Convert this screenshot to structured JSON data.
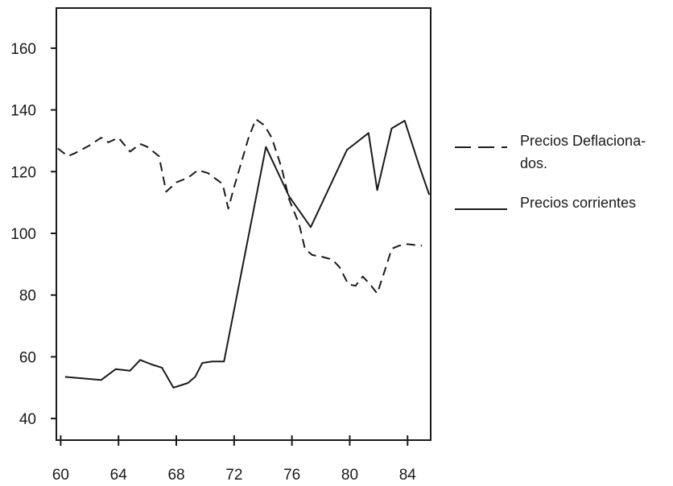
{
  "chart_data": {
    "type": "line",
    "title": "",
    "xlabel": "",
    "ylabel": "",
    "xlim": [
      59.7,
      85.6
    ],
    "ylim": [
      33,
      173
    ],
    "x_ticks": [
      60,
      64,
      68,
      72,
      76,
      80,
      84
    ],
    "x_tick_labels": [
      "60",
      "64",
      "68",
      "72",
      "76",
      "80",
      "84"
    ],
    "y_ticks": [
      40,
      60,
      80,
      100,
      120,
      140,
      160
    ],
    "y_tick_labels": [
      "40",
      "60",
      "80",
      "100",
      "120",
      "140",
      "160"
    ],
    "grid": false,
    "legend_position": "right",
    "legend": [
      {
        "lines": [
          "Precios Deflaciona-",
          "dos."
        ],
        "style": "dashed"
      },
      {
        "lines": [
          "Precios corrientes"
        ],
        "style": "solid"
      }
    ],
    "series": [
      {
        "style": "dashed",
        "color": "#1a1a1a",
        "points": [
          [
            59.8,
            127.5
          ],
          [
            60.5,
            125
          ],
          [
            61,
            126
          ],
          [
            62,
            128.5
          ],
          [
            62.8,
            131
          ],
          [
            63.3,
            129.5
          ],
          [
            64,
            131
          ],
          [
            64.8,
            126.5
          ],
          [
            65.5,
            129
          ],
          [
            66,
            128
          ],
          [
            66.8,
            125
          ],
          [
            67.3,
            113.5
          ],
          [
            68,
            116.5
          ],
          [
            68.8,
            118
          ],
          [
            69.5,
            120.5
          ],
          [
            70.2,
            119.5
          ],
          [
            71.2,
            116
          ],
          [
            71.6,
            108
          ],
          [
            72,
            115
          ],
          [
            73,
            131
          ],
          [
            73.5,
            137
          ],
          [
            74.1,
            135
          ],
          [
            74.6,
            131
          ],
          [
            75.3,
            121
          ],
          [
            75.8,
            111
          ],
          [
            76.5,
            103
          ],
          [
            76.9,
            95
          ],
          [
            77.4,
            93
          ],
          [
            78,
            92.5
          ],
          [
            78.8,
            91.5
          ],
          [
            79.3,
            89
          ],
          [
            79.9,
            83.5
          ],
          [
            80.4,
            83
          ],
          [
            80.9,
            86
          ],
          [
            81.4,
            83.5
          ],
          [
            81.9,
            80.5
          ],
          [
            82.5,
            89
          ],
          [
            82.9,
            95
          ],
          [
            83.4,
            96
          ],
          [
            84,
            96.5
          ],
          [
            85,
            96
          ]
        ]
      },
      {
        "style": "solid",
        "color": "#1a1a1a",
        "points": [
          [
            60.3,
            53.5
          ],
          [
            62.8,
            52.5
          ],
          [
            63.8,
            56
          ],
          [
            64.8,
            55.5
          ],
          [
            65.5,
            59
          ],
          [
            66.3,
            57.5
          ],
          [
            67,
            56.5
          ],
          [
            67.8,
            50
          ],
          [
            68.8,
            51.5
          ],
          [
            69.3,
            53.5
          ],
          [
            69.8,
            58
          ],
          [
            70.5,
            58.5
          ],
          [
            71.3,
            58.5
          ],
          [
            74.2,
            128
          ],
          [
            75.8,
            112
          ],
          [
            77.3,
            102
          ],
          [
            79.8,
            127
          ],
          [
            81.3,
            132.5
          ],
          [
            81.9,
            114
          ],
          [
            82.9,
            134
          ],
          [
            83.8,
            136.5
          ],
          [
            84.8,
            122
          ],
          [
            85.5,
            112.5
          ]
        ]
      }
    ]
  }
}
